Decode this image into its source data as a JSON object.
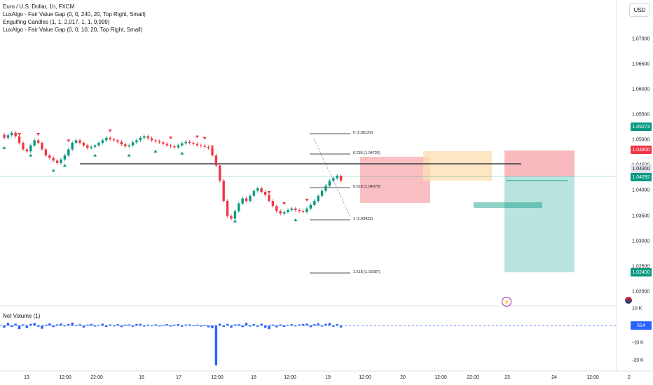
{
  "legend": {
    "title": "Euro / U.S. Dollar, 1h, FXCM",
    "indicators": [
      "LuxAlgo - Fair Value Gap (0, 0, 240, 20, Top Right, Small)",
      "Engulfing Candles (1, 1, 2,017, 1, 1, 9,999)",
      "LuxAlgo - Fair Value Gap (0, 0, 10, 20, Top Right, Small)"
    ]
  },
  "currency_button": "USD",
  "price_axis": {
    "labels": [
      "1.07000",
      "1.06500",
      "1.06000",
      "1.05500",
      "1.05000",
      "1.04500",
      "1.04000",
      "1.03500",
      "1.03000",
      "1.02500",
      "1.02000"
    ],
    "badges": [
      {
        "text": "1.05273",
        "color": "#089981"
      },
      {
        "text": "1.04800",
        "color": "#f23645"
      },
      {
        "text": "1.04300",
        "color": "#e0e3eb",
        "text_color": "#131722"
      },
      {
        "text": "1.04292",
        "color": "#089981"
      },
      {
        "text": "1.02400",
        "color": "#089981"
      }
    ]
  },
  "time_axis": [
    "13",
    "12:00",
    "22:00",
    "16",
    "17",
    "12:00",
    "18",
    "12:00",
    "19",
    "12:00",
    "20",
    "12:00",
    "22:00",
    "23",
    "24",
    "12:00",
    "2"
  ],
  "fib_levels": [
    "0 (1.05129)",
    "0.236 (1.04726)",
    "0.618 (1.04079)",
    "1 (1.03433)",
    "1.618 (1.02387)"
  ],
  "volume": {
    "title": "Net Volume (1)",
    "axis_labels": [
      "10 K",
      "-10 K",
      "-20 K"
    ],
    "badge": "514"
  },
  "colors": {
    "up": "#089981",
    "down": "#f23645",
    "volume": "#2962ff",
    "short_stop": "#f7a9ad",
    "short_target": "#a8ddd6",
    "fvg_bear": "#f7a9ad",
    "fvg_bull": "#fbe0b4"
  },
  "chart_data": {
    "type": "candlestick",
    "symbol": "Euro / U.S. Dollar",
    "interval": "1h",
    "ylim": [
      1.019,
      1.072
    ],
    "close_path": [
      1.0505,
      1.051,
      1.0515,
      1.0508,
      1.0495,
      1.0482,
      1.0478,
      1.049,
      1.05,
      1.0495,
      1.0482,
      1.047,
      1.0465,
      1.046,
      1.0455,
      1.0462,
      1.047,
      1.0482,
      1.0495,
      1.05,
      1.0495,
      1.049,
      1.0485,
      1.0487,
      1.049,
      1.0495,
      1.05,
      1.0505,
      1.0502,
      1.05,
      1.0497,
      1.0492,
      1.0488,
      1.049,
      1.0496,
      1.05,
      1.0505,
      1.0508,
      1.0504,
      1.05,
      1.0498,
      1.0496,
      1.0493,
      1.049,
      1.0488,
      1.0486,
      1.049,
      1.0494,
      1.0497,
      1.0495,
      1.0493,
      1.049,
      1.0489,
      1.0487,
      1.0485,
      1.047,
      1.045,
      1.042,
      1.038,
      1.035,
      1.0345,
      1.036,
      1.0375,
      1.0385,
      1.038,
      1.039,
      1.04,
      1.0405,
      1.0398,
      1.0392,
      1.038,
      1.037,
      1.036,
      1.0355,
      1.0358,
      1.0362,
      1.0365,
      1.0362,
      1.036,
      1.0358,
      1.0365,
      1.0372,
      1.038,
      1.039,
      1.04,
      1.041,
      1.042,
      1.0425,
      1.043,
      1.042
    ],
    "volume_values": [
      -1.2,
      1.5,
      -0.8,
      1.0,
      -2.0,
      0.6,
      -1.5,
      0.9,
      1.4,
      -0.7,
      -1.8,
      0.5,
      1.2,
      -0.9,
      0.6,
      1.1,
      -0.5,
      0.8,
      1.6,
      -0.4,
      0.7,
      -1.1,
      0.5,
      0.9,
      -0.6,
      0.4,
      1.0,
      -0.8,
      0.6,
      -0.5,
      0.7,
      -0.9,
      0.5,
      0.6,
      -0.7,
      0.8,
      0.9,
      -0.6,
      0.5,
      -0.4,
      0.6,
      -0.5,
      0.4,
      0.7,
      -0.6,
      0.5,
      0.8,
      -0.7,
      0.5,
      0.6,
      -0.4,
      0.5,
      -0.6,
      0.4,
      -1.0,
      -1.5,
      -22.0,
      1.0,
      -0.8,
      0.9,
      -1.2,
      0.6,
      0.7,
      -0.9,
      1.5,
      -0.6,
      0.8,
      -0.7,
      1.0,
      -1.3,
      -2.0,
      0.5,
      -1.0,
      0.6,
      -0.8,
      0.4,
      0.7,
      -0.5,
      0.6,
      0.8,
      1.0,
      -0.9,
      0.7,
      1.2,
      -0.6,
      0.9,
      1.4,
      -0.7,
      0.8,
      -1.1
    ]
  }
}
